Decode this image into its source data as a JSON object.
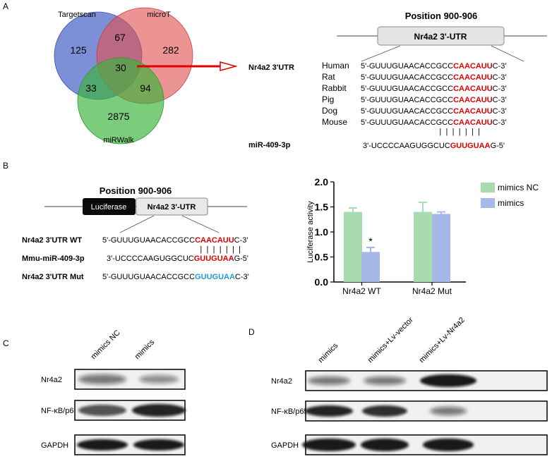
{
  "panels": {
    "a": "A",
    "b": "B",
    "c": "C",
    "d": "D"
  },
  "venn": {
    "labels": {
      "targetscan": "Targetscan",
      "microt": "microT",
      "mirwalk": "miRWalk"
    },
    "counts": {
      "t_only": "125",
      "tm": "67",
      "m_only": "282",
      "center": "30",
      "tw": "33",
      "mw": "94",
      "w_only": "2875"
    },
    "colors": {
      "targetscan": "#4a64c8",
      "microt": "#e05050",
      "mirwalk": "#3cb43c",
      "arrow": "#e00000"
    }
  },
  "panel_a": {
    "gene_label": "Nr4a2 3'UTR",
    "mirna_label": "miR-409-3p",
    "position_title": "Position 900-906",
    "utr_box": "Nr4a2 3'-UTR",
    "species": [
      {
        "name": "Human",
        "pre": "5'-GUUUGUAACACCGCC",
        "site": "CAACAUU",
        "post": "C-3'"
      },
      {
        "name": "Rat",
        "pre": "5'-GUUUGUAACACCGCC",
        "site": "CAACAUU",
        "post": "C-3'"
      },
      {
        "name": "Rabbit",
        "pre": "5'-GUUUGUAACACCGCC",
        "site": "CAACAUU",
        "post": "C-3'"
      },
      {
        "name": "Pig",
        "pre": "5'-GUUUGUAACACCGCC",
        "site": "CAACAUU",
        "post": "C-3'"
      },
      {
        "name": "Dog",
        "pre": "5'-GUUUGUAACACCGCC",
        "site": "CAACAUU",
        "post": "C-3'"
      },
      {
        "name": "Mouse",
        "pre": "5'-GUUUGUAACACCGCC",
        "site": "CAACAUU",
        "post": "C-3'"
      }
    ],
    "pairing": "| | | | | | |",
    "mirna_seq": {
      "pre": "3'-UCCCCAAGUGGCUC",
      "site": "GUUGUAA",
      "post": "G-5'"
    }
  },
  "panel_b": {
    "position_title": "Position 900-906",
    "luciferase_box": "Luciferase",
    "utr_box": "Nr4a2 3'-UTR",
    "rows": [
      {
        "label": "Nr4a2 3'UTR WT",
        "pre": "5'-GUUUGUAACACCGCC",
        "site": "CAACAUU",
        "post": "C-3'",
        "site_color": "#e00000"
      },
      {
        "label": "Mmu-miR-409-3p",
        "pre": "3'-UCCCCAAGUGGCUC",
        "site": "GUUGUAA",
        "post": "G-5'",
        "site_color": "#e00000"
      },
      {
        "label": "Nr4a2 3'UTR Mut",
        "pre": "5'-GUUUGUAACACCGCC",
        "site": "GUUGUAA",
        "post": "C-3'",
        "site_color": "#1aa0d8"
      }
    ],
    "pairing": "| | | | | | |"
  },
  "chart_data": {
    "type": "bar",
    "categories": [
      "Nr4a2 WT",
      "Nr4a2 Mut"
    ],
    "series": [
      {
        "name": "mimics NC",
        "values": [
          1.4,
          1.4
        ],
        "errors": [
          0.08,
          0.19
        ],
        "color": "#a8dbb0"
      },
      {
        "name": "mimics",
        "values": [
          0.6,
          1.36
        ],
        "errors": [
          0.09,
          0.04
        ],
        "color": "#a6b8e8"
      }
    ],
    "ylabel": "Luciferase activity",
    "xlabel": "",
    "ylim": [
      0,
      2.0
    ],
    "yticks": [
      "0.0",
      "0.5",
      "1.0",
      "1.5",
      "2.0"
    ],
    "annotations": [
      "*"
    ],
    "legend": "top-right"
  },
  "panel_c": {
    "lanes": [
      "mimics NC",
      "mimics"
    ],
    "rows": [
      "Nr4a2",
      "NF-κB/p65",
      "GAPDH"
    ]
  },
  "panel_d": {
    "lanes": [
      "mimics",
      "mimics+Lv-vector",
      "mimics+Lv-Nr4a2"
    ],
    "rows": [
      "Nr4a2",
      "NF-κB/p65",
      "GAPDH"
    ]
  }
}
